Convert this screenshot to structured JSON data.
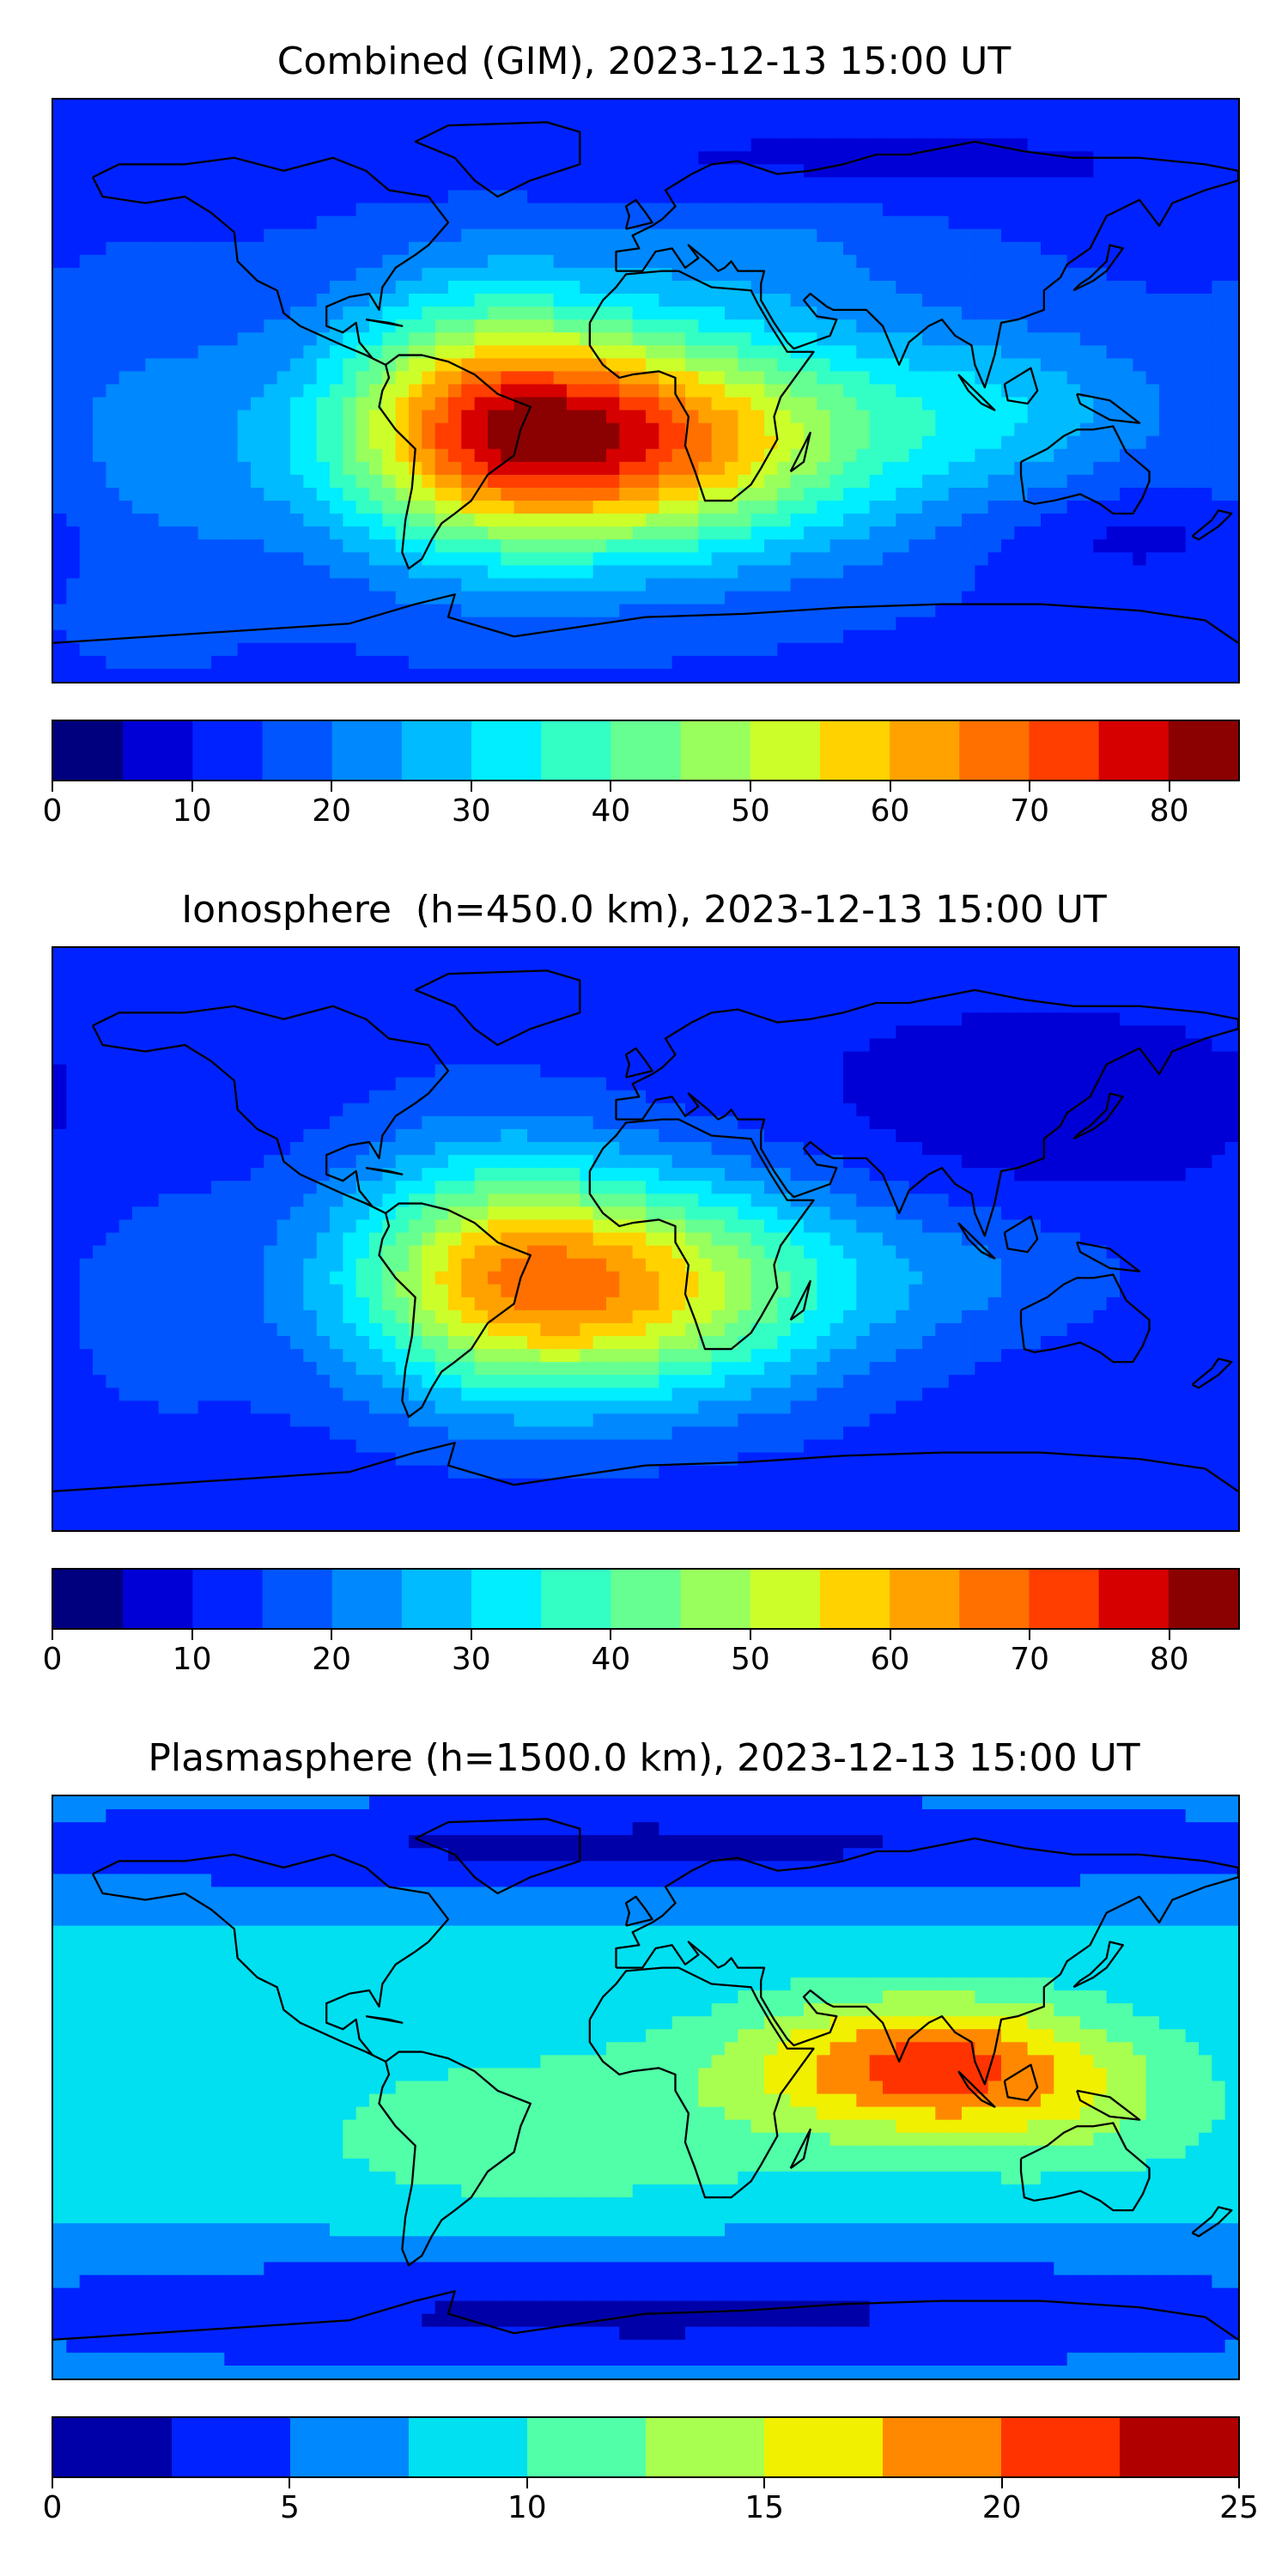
{
  "chart_data": [
    {
      "type": "heatmap",
      "title": "Combined (GIM), 2023-12-13 15:00 UT",
      "colorbar": {
        "min": 0,
        "max": 85,
        "step": 5,
        "ticks": [
          0,
          10,
          20,
          30,
          40,
          50,
          60,
          70,
          80
        ],
        "tick_labels": [
          "0",
          "10",
          "20",
          "30",
          "40",
          "50",
          "60",
          "70",
          "80"
        ],
        "colors": [
          "#00007f",
          "#0000d6",
          "#0022ff",
          "#0055ff",
          "#0088ff",
          "#00bbff",
          "#00eeff",
          "#33ffc4",
          "#66ff91",
          "#99ff5d",
          "#ccff2a",
          "#ffd200",
          "#ffa200",
          "#ff7000",
          "#ff3e00",
          "#d60000",
          "#8b0000"
        ]
      },
      "field": {
        "background": 14,
        "blobs": [
          {
            "lon": -10,
            "lat": -15,
            "slon": 55,
            "slat": 24,
            "amp": 58
          },
          {
            "lon": -50,
            "lat": -5,
            "slon": 30,
            "slat": 30,
            "amp": 22
          },
          {
            "lon": 110,
            "lat": -5,
            "slon": 35,
            "slat": 18,
            "amp": 12
          },
          {
            "lon": 35,
            "lat": 45,
            "slon": 40,
            "slat": 15,
            "amp": 6
          },
          {
            "lon": -150,
            "lat": -20,
            "slon": 25,
            "slat": 35,
            "amp": 6
          },
          {
            "lon": 150,
            "lat": -45,
            "slon": 30,
            "slat": 10,
            "amp": -6
          },
          {
            "lon": 60,
            "lat": 70,
            "slon": 90,
            "slat": 10,
            "amp": -6
          }
        ]
      }
    },
    {
      "type": "heatmap",
      "title": "Ionosphere  (h=450.0 km), 2023-12-13 15:00 UT",
      "colorbar": {
        "min": 0,
        "max": 85,
        "step": 5,
        "ticks": [
          0,
          10,
          20,
          30,
          40,
          50,
          60,
          70,
          80
        ],
        "tick_labels": [
          "0",
          "10",
          "20",
          "30",
          "40",
          "50",
          "60",
          "70",
          "80"
        ],
        "colors": [
          "#00007f",
          "#0000d6",
          "#0022ff",
          "#0055ff",
          "#0088ff",
          "#00bbff",
          "#00eeff",
          "#33ffc4",
          "#66ff91",
          "#99ff5d",
          "#ccff2a",
          "#ffd200",
          "#ffa200",
          "#ff7000",
          "#ff3e00",
          "#d60000",
          "#8b0000"
        ]
      },
      "field": {
        "background": 12,
        "blobs": [
          {
            "lon": -12,
            "lat": -15,
            "slon": 50,
            "slat": 24,
            "amp": 48
          },
          {
            "lon": -50,
            "lat": -5,
            "slon": 30,
            "slat": 30,
            "amp": 16
          },
          {
            "lon": 100,
            "lat": -10,
            "slon": 35,
            "slat": 15,
            "amp": 6
          },
          {
            "lon": 120,
            "lat": 40,
            "slon": 50,
            "slat": 20,
            "amp": -6
          },
          {
            "lon": -150,
            "lat": -20,
            "slon": 25,
            "slat": 35,
            "amp": 4
          }
        ]
      }
    },
    {
      "type": "heatmap",
      "title": "Plasmasphere (h=1500.0 km), 2023-12-13 15:00 UT",
      "colorbar": {
        "min": 0,
        "max": 25,
        "step": 2.5,
        "ticks": [
          0,
          5,
          10,
          15,
          20,
          25
        ],
        "tick_labels": [
          "0",
          "5",
          "10",
          "15",
          "20",
          "25"
        ],
        "colors": [
          "#0000a8",
          "#0022ff",
          "#0088ff",
          "#00e0f0",
          "#50ffa8",
          "#a8ff50",
          "#f0f000",
          "#ff8800",
          "#ff3300",
          "#b00000"
        ]
      },
      "field": {
        "background": 8,
        "blobs": [
          {
            "lon": 85,
            "lat": 7,
            "slon": 40,
            "slat": 15,
            "amp": 12.5
          },
          {
            "lon": -30,
            "lat": -15,
            "slon": 60,
            "slat": 20,
            "amp": 3.5
          },
          {
            "lon": 130,
            "lat": -10,
            "slon": 35,
            "slat": 15,
            "amp": 3
          },
          {
            "lon": 0,
            "lat": 75,
            "slon": 180,
            "slat": 12,
            "amp": -6
          },
          {
            "lon": 0,
            "lat": -70,
            "slon": 180,
            "slat": 15,
            "amp": -6
          }
        ]
      }
    }
  ]
}
